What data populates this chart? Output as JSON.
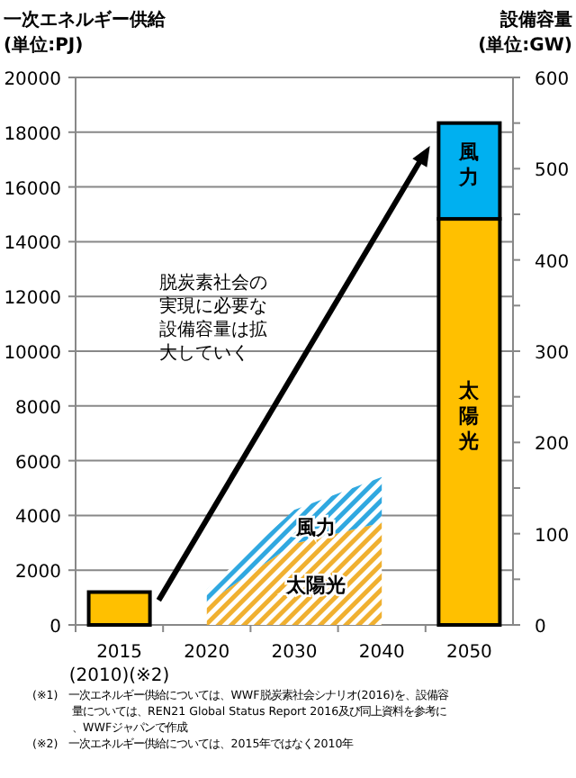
{
  "chart_data": {
    "type": "bar",
    "stacked": true,
    "ylabel": "一次エネルギー供給\n(単位:PJ)",
    "y2label": "設備容量\n(単位:GW)",
    "categories": [
      "2015\n(2010)(※2)",
      "2020",
      "2030",
      "2040",
      "2050"
    ],
    "series": [
      {
        "color": "#ffc000",
        "values": [
          1200,
          null,
          null,
          null,
          null
        ]
      },
      {
        "name": "太陽光",
        "color": "#ffc000",
        "axis": "y2",
        "values": [
          null,
          null,
          null,
          null,
          445
        ]
      },
      {
        "name": "風力",
        "color": "#00b0f0",
        "axis": "y2",
        "values": [
          null,
          null,
          null,
          null,
          105
        ]
      },
      {
        "name": "太陽光",
        "type": "area",
        "color": "#f0b030",
        "axis": "y2",
        "values": [
          null,
          24,
          89,
          112,
          null
        ]
      },
      {
        "name": "風力",
        "type": "area",
        "color": "#30a8e0",
        "axis": "y2",
        "values": [
          null,
          15,
          37,
          50,
          null
        ]
      }
    ],
    "ylim": [
      0,
      20000
    ],
    "yticks": [
      0,
      2000,
      4000,
      6000,
      8000,
      10000,
      12000,
      14000,
      16000,
      18000,
      20000
    ],
    "y2lim": [
      0,
      600
    ],
    "y2ticks": [
      0,
      {
        "value": 50,
        "label": null
      },
      100,
      {
        "value": 150,
        "label": null
      },
      200,
      {
        "value": 250,
        "label": null
      },
      300,
      {
        "value": 350,
        "label": null
      },
      400,
      {
        "value": 450,
        "label": null
      },
      500,
      {
        "value": 550,
        "label": null
      },
      600
    ],
    "grid": "y",
    "annotations": [
      "脱炭素社会の実現に必要な設備容量は拡大していく",
      "(※1)　一次エネルギー供給については、WWF脱炭素社会シナリオ(2016)を、設備容量については、REN21 Global Status Report 2016及び同上資料を参考に、WWFジャパンで作成",
      "(※2)　一次エネルギー供給については、2015年ではなく2010年"
    ]
  }
}
